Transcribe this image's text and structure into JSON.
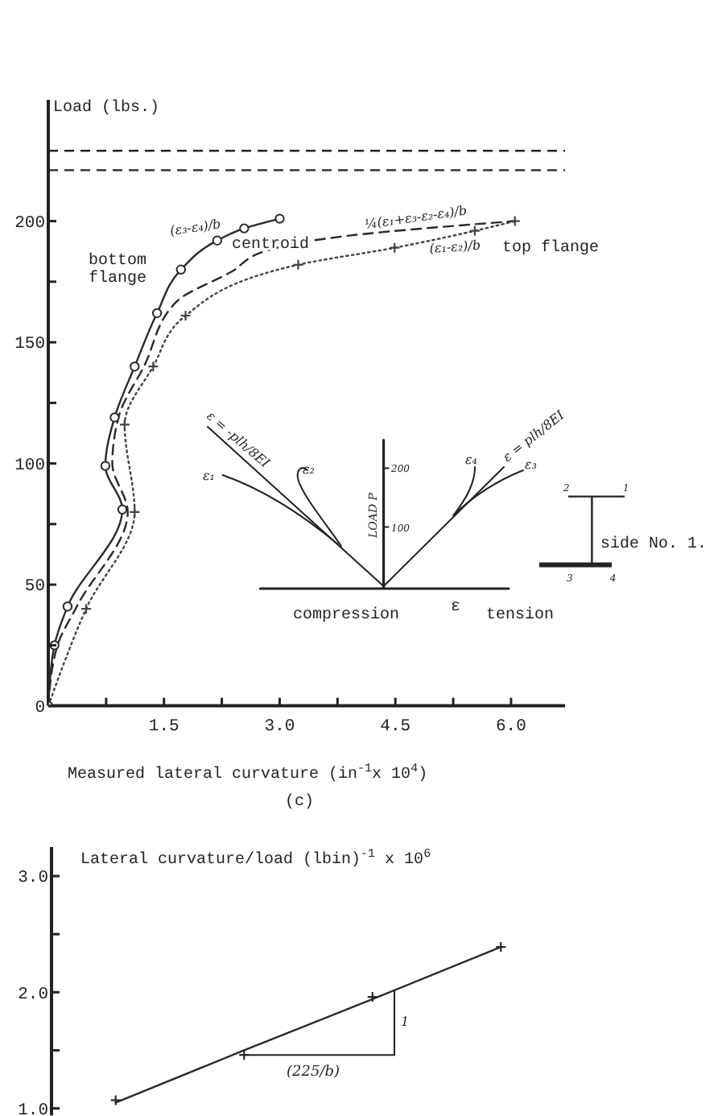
{
  "chart_data": [
    {
      "type": "line",
      "ylabel": "Load (lbs.)",
      "xlabel": "Measured lateral curvature (in$^{-1}$x 10$^{4}$)",
      "xlim": [
        0,
        6.7
      ],
      "xticks": [
        {
          "value": 0.75,
          "label": null
        },
        {
          "value": 1.5,
          "label": "1.5"
        },
        {
          "value": 2.25,
          "label": null
        },
        {
          "value": 3,
          "label": "3.0"
        },
        {
          "value": 3.75,
          "label": null
        },
        {
          "value": 4.5,
          "label": "4.5"
        },
        {
          "value": 5.25,
          "label": null
        },
        {
          "value": 6,
          "label": "6.0"
        }
      ],
      "ylim": [
        0,
        250
      ],
      "yticks": [
        0,
        {
          "value": 25,
          "label": null
        },
        50,
        {
          "value": 75,
          "label": null
        },
        100,
        {
          "value": 125,
          "label": null
        },
        150,
        {
          "value": 175,
          "label": null
        },
        200
      ],
      "series": [
        {
          "name": "bottom flange",
          "color": "#2a2a2a",
          "marker": "circle",
          "line_style": "solid",
          "x": [
            0,
            0.08,
            0.25,
            0.96,
            0.74,
            0.86,
            1.12,
            1.41,
            1.72,
            2.19,
            2.54,
            3.0
          ],
          "values": [
            0,
            25,
            41,
            81,
            99,
            119,
            140,
            162,
            180,
            192,
            197,
            201
          ]
        },
        {
          "name": "centroid",
          "color": "#2a2a2a",
          "marker": "none",
          "line_style": "dashed",
          "x": [
            0,
            0.12,
            0.37,
            1.03,
            0.83,
            0.92,
            1.24,
            1.67,
            2.37,
            2.85,
            3.9,
            6.05
          ],
          "values": [
            0,
            25,
            41,
            80,
            100,
            120,
            140,
            167,
            179,
            188,
            194,
            200
          ]
        },
        {
          "name": "top flange",
          "color": "#444444",
          "marker": "cross",
          "line_style": "dotted",
          "x": [
            0,
            0.49,
            1.12,
            0.99,
            1.36,
            1.78,
            3.24,
            4.49,
            5.53,
            6.05
          ],
          "values": [
            0,
            40,
            80,
            116,
            140,
            161,
            182,
            189,
            196,
            200
          ]
        }
      ],
      "ref_lines": [
        {
          "axis": "y",
          "value": 229,
          "line_style": "dashed"
        },
        {
          "axis": "y",
          "value": 221,
          "line_style": "dashed"
        }
      ],
      "annotations": [
        "(ε₃-ε₄)/b",
        "¼(ε₁+ε₃-ε₂-ε₄)/b",
        "(ε₁-ε₂)/b",
        "ε = -plh/8EI",
        "ε₁",
        "ε₂",
        "LOAD P",
        "200",
        "100",
        "ε₄",
        "ε = plh/8EI",
        "ε₃",
        "compression",
        "ε",
        "tension",
        "2",
        "1",
        "3",
        "4",
        "side No. 1.",
        "(c)"
      ]
    },
    {
      "type": "scatter",
      "ylabel": "Lateral curvature/load (lbin)$^{-1}$ x 10$^{6}$",
      "categories": [
        null,
        null,
        null,
        null
      ],
      "ylim": [
        0.94,
        3.25
      ],
      "yticks": [
        {
          "value": 1,
          "label": "1.0"
        },
        {
          "value": 1.5,
          "label": null
        },
        {
          "value": 2,
          "label": "2.0"
        },
        {
          "value": 2.5,
          "label": null
        },
        {
          "value": 3,
          "label": "3.0"
        }
      ],
      "tick_labels": "y",
      "series": [
        {
          "color": "#2a2a2a",
          "marker": "cross",
          "values": [
            1.07,
            1.46,
            1.96,
            2.39
          ]
        },
        {
          "type": "line",
          "color": "#2a2a2a",
          "marker": "none",
          "line_style": "solid",
          "values": [
            1.05,
            1.5,
            1.94,
            2.39
          ]
        }
      ],
      "annotations": [
        "(225/b)",
        "1"
      ]
    }
  ]
}
